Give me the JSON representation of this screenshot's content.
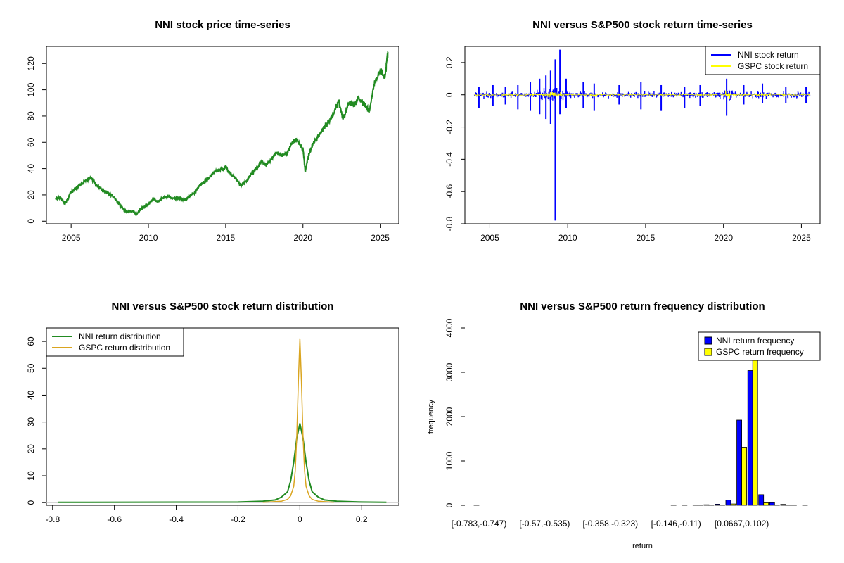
{
  "chart_data": [
    {
      "type": "line",
      "title": "NNI stock price time-series",
      "xlabel": "",
      "ylabel": "",
      "xlim": [
        2003.4,
        2026.2
      ],
      "ylim": [
        -2,
        133
      ],
      "x_ticks": [
        2005,
        2010,
        2015,
        2020,
        2025
      ],
      "y_ticks": [
        0,
        20,
        40,
        60,
        80,
        100,
        120
      ],
      "color": "#228B22",
      "series": [
        {
          "name": "",
          "x": [
            2004.0,
            2004.3,
            2004.6,
            2005.0,
            2005.3,
            2005.6,
            2006.0,
            2006.3,
            2006.6,
            2007.0,
            2007.3,
            2007.6,
            2008.0,
            2008.3,
            2008.6,
            2009.0,
            2009.2,
            2009.5,
            2009.8,
            2010.0,
            2010.3,
            2010.6,
            2011.0,
            2011.3,
            2011.6,
            2012.0,
            2012.3,
            2012.6,
            2013.0,
            2013.3,
            2013.6,
            2014.0,
            2014.3,
            2014.6,
            2015.0,
            2015.3,
            2015.6,
            2016.0,
            2016.3,
            2016.6,
            2017.0,
            2017.3,
            2017.6,
            2018.0,
            2018.3,
            2018.6,
            2019.0,
            2019.3,
            2019.6,
            2020.0,
            2020.15,
            2020.3,
            2020.6,
            2021.0,
            2021.3,
            2021.6,
            2022.0,
            2022.3,
            2022.6,
            2023.0,
            2023.3,
            2023.6,
            2024.0,
            2024.3,
            2024.6,
            2025.0,
            2025.3,
            2025.5
          ],
          "values": [
            17,
            18,
            13,
            22,
            25,
            28,
            31,
            33,
            28,
            24,
            22,
            20,
            15,
            10,
            7,
            8,
            5,
            9,
            11,
            13,
            17,
            15,
            18,
            19,
            17,
            17,
            16,
            18,
            22,
            27,
            30,
            34,
            38,
            39,
            41,
            36,
            33,
            27,
            30,
            35,
            40,
            45,
            43,
            48,
            52,
            50,
            52,
            60,
            62,
            55,
            38,
            47,
            58,
            65,
            70,
            74,
            82,
            92,
            78,
            91,
            88,
            94,
            88,
            84,
            104,
            115,
            110,
            129
          ]
        }
      ]
    },
    {
      "type": "line",
      "title": "NNI versus S&P500 stock return time-series",
      "xlabel": "",
      "ylabel": "",
      "xlim": [
        2003.4,
        2026.2
      ],
      "ylim": [
        -0.8,
        0.3
      ],
      "x_ticks": [
        2005,
        2010,
        2015,
        2020,
        2025
      ],
      "y_ticks": [
        -0.8,
        -0.6,
        -0.4,
        -0.2,
        0.0,
        0.2
      ],
      "series": [
        {
          "name": "NNI stock return",
          "color": "#0000FF",
          "spikes": [
            [
              2004.3,
              0.05,
              -0.08
            ],
            [
              2005.2,
              0.06,
              -0.07
            ],
            [
              2006.0,
              0.05,
              -0.06
            ],
            [
              2006.8,
              0.06,
              -0.09
            ],
            [
              2007.6,
              0.08,
              -0.1
            ],
            [
              2008.2,
              0.1,
              -0.12
            ],
            [
              2008.6,
              0.12,
              -0.15
            ],
            [
              2008.9,
              0.15,
              -0.18
            ],
            [
              2009.2,
              0.22,
              -0.78
            ],
            [
              2009.5,
              0.28,
              -0.12
            ],
            [
              2009.9,
              0.1,
              -0.08
            ],
            [
              2011.0,
              0.08,
              -0.08
            ],
            [
              2011.7,
              0.07,
              -0.1
            ],
            [
              2013.3,
              0.06,
              -0.06
            ],
            [
              2014.7,
              0.08,
              -0.09
            ],
            [
              2016.0,
              0.06,
              -0.1
            ],
            [
              2017.5,
              0.05,
              -0.08
            ],
            [
              2018.5,
              0.06,
              -0.07
            ],
            [
              2020.2,
              0.1,
              -0.13
            ],
            [
              2021.3,
              0.06,
              -0.06
            ],
            [
              2022.5,
              0.07,
              -0.05
            ],
            [
              2024.0,
              0.05,
              -0.05
            ],
            [
              2025.3,
              0.05,
              -0.05
            ]
          ]
        },
        {
          "name": "GSPC stock return",
          "color": "#FFFF00"
        }
      ],
      "legend": "top-right"
    },
    {
      "type": "line",
      "title": "NNI versus S&P500 stock return distribution",
      "xlabel": "",
      "ylabel": "",
      "xlim": [
        -0.82,
        0.32
      ],
      "ylim": [
        -1,
        65
      ],
      "x_ticks": [
        -0.8,
        -0.6,
        -0.4,
        -0.2,
        0.0,
        0.2
      ],
      "y_ticks": [
        0,
        10,
        20,
        30,
        40,
        50,
        60
      ],
      "series": [
        {
          "name": "NNI return distribution",
          "color": "#228B22",
          "x": [
            -0.783,
            -0.2,
            -0.12,
            -0.08,
            -0.06,
            -0.04,
            -0.03,
            -0.02,
            -0.01,
            0.0,
            0.01,
            0.02,
            0.03,
            0.04,
            0.06,
            0.08,
            0.12,
            0.2,
            0.28
          ],
          "values": [
            0.1,
            0.2,
            0.5,
            1.0,
            2.0,
            4.0,
            8.0,
            15.0,
            24.0,
            29.4,
            24.0,
            15.0,
            8.0,
            4.0,
            2.0,
            1.0,
            0.5,
            0.2,
            0.1
          ]
        },
        {
          "name": "GSPC return distribution",
          "color": "#DAA520",
          "x": [
            -0.12,
            -0.06,
            -0.04,
            -0.03,
            -0.02,
            -0.015,
            -0.01,
            -0.005,
            0.0,
            0.005,
            0.01,
            0.015,
            0.02,
            0.03,
            0.04,
            0.06,
            0.11
          ],
          "values": [
            0.1,
            0.5,
            1.2,
            2.5,
            6.0,
            12.0,
            25.0,
            45.0,
            61.0,
            45.0,
            25.0,
            12.0,
            6.0,
            2.5,
            1.2,
            0.5,
            0.1
          ]
        }
      ],
      "legend": "top-left"
    },
    {
      "type": "bar",
      "title": "NNI versus S&P500 return frequency distribution",
      "xlabel": "return",
      "ylabel": "frequency",
      "ylim": [
        0,
        4000
      ],
      "y_ticks": [
        0,
        1000,
        2000,
        3000,
        4000
      ],
      "category_labels": [
        "[-0.783,-0.747)",
        "[-0.57,-0.535)",
        "[-0.358,-0.323)",
        "[-0.146,-0.11)",
        "[0.0667,0.102)"
      ],
      "category_label_positions": [
        0,
        6,
        12,
        18,
        24
      ],
      "series": [
        {
          "name": "NNI return frequency",
          "color": "#0000FF",
          "values": [
            1,
            0,
            0,
            0,
            0,
            0,
            0,
            0,
            0,
            0,
            0,
            0,
            0,
            0,
            0,
            0,
            0,
            0,
            1,
            2,
            5,
            12,
            25,
            120,
            1920,
            3040,
            240,
            60,
            20,
            8,
            3
          ]
        },
        {
          "name": "GSPC return frequency",
          "color": "#FFFF00",
          "values": [
            0,
            0,
            0,
            0,
            0,
            0,
            0,
            0,
            0,
            0,
            0,
            0,
            0,
            0,
            0,
            0,
            0,
            0,
            0,
            0,
            1,
            3,
            5,
            30,
            1310,
            3840,
            55,
            5,
            1,
            0,
            0
          ]
        }
      ],
      "legend": "top-right"
    }
  ]
}
